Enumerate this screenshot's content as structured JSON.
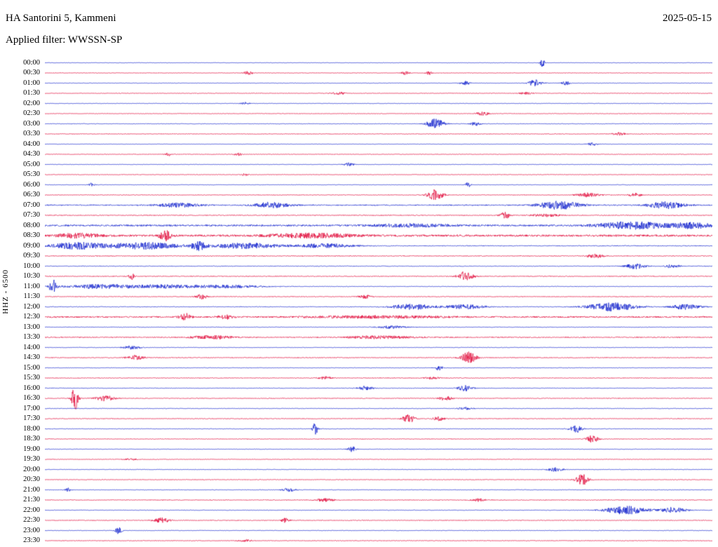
{
  "header": {
    "station_title": "HA Santorini 5, Kammeni",
    "date": "2025-05-15",
    "filter_label": "Applied filter: WWSSN-SP"
  },
  "axis": {
    "channel_label": "HHZ - 6500"
  },
  "chart_data": {
    "type": "line",
    "title": "HA Santorini 5, Kammeni",
    "subtitle": "Applied filter: WWSSN-SP",
    "date": "2025-05-15",
    "row_minutes": 30,
    "legend": "alternating half-hour traces, blue then red",
    "colors": {
      "blue": "#1122cc",
      "red": "#e00838"
    },
    "rows": [
      {
        "t": "00:00",
        "c": "b",
        "n": 0.55,
        "b": [
          [
            0.745,
            6,
            0.0035
          ]
        ]
      },
      {
        "t": "00:30",
        "c": "r",
        "n": 0.7,
        "b": [
          [
            0.305,
            2.5,
            0.007
          ],
          [
            0.54,
            2.5,
            0.006
          ],
          [
            0.575,
            3,
            0.005
          ]
        ]
      },
      {
        "t": "01:00",
        "c": "b",
        "n": 0.7,
        "b": [
          [
            0.63,
            3,
            0.007
          ],
          [
            0.735,
            5,
            0.01
          ],
          [
            0.78,
            3,
            0.006
          ]
        ]
      },
      {
        "t": "01:30",
        "c": "r",
        "n": 0.8,
        "b": [
          [
            0.44,
            1.8,
            0.01
          ],
          [
            0.72,
            1.5,
            0.01
          ]
        ]
      },
      {
        "t": "02:00",
        "c": "b",
        "n": 0.6,
        "b": [
          [
            0.3,
            1.8,
            0.006
          ]
        ]
      },
      {
        "t": "02:30",
        "c": "r",
        "n": 0.8,
        "b": [
          [
            0.655,
            3,
            0.009
          ]
        ]
      },
      {
        "t": "03:00",
        "c": "b",
        "n": 0.8,
        "b": [
          [
            0.585,
            7,
            0.013
          ],
          [
            0.645,
            3,
            0.007
          ]
        ]
      },
      {
        "t": "03:30",
        "c": "r",
        "n": 0.9,
        "b": [
          [
            0.86,
            2,
            0.01
          ]
        ]
      },
      {
        "t": "04:00",
        "c": "b",
        "n": 0.6,
        "b": [
          [
            0.82,
            2,
            0.008
          ]
        ]
      },
      {
        "t": "04:30",
        "c": "r",
        "n": 0.8,
        "b": [
          [
            0.185,
            2.5,
            0.004
          ],
          [
            0.29,
            2,
            0.006
          ]
        ]
      },
      {
        "t": "05:00",
        "c": "b",
        "n": 0.6,
        "b": [
          [
            0.455,
            2.5,
            0.008
          ]
        ]
      },
      {
        "t": "05:30",
        "c": "r",
        "n": 0.8,
        "b": [
          [
            0.3,
            1.5,
            0.006
          ]
        ]
      },
      {
        "t": "06:00",
        "c": "b",
        "n": 0.7,
        "b": [
          [
            0.07,
            2.5,
            0.005
          ],
          [
            0.634,
            4,
            0.004
          ]
        ]
      },
      {
        "t": "06:30",
        "c": "r",
        "n": 0.9,
        "b": [
          [
            0.585,
            8,
            0.011
          ],
          [
            0.815,
            3,
            0.018
          ],
          [
            0.885,
            2.5,
            0.01
          ]
        ]
      },
      {
        "t": "07:00",
        "c": "b",
        "n": 1.6,
        "b": [
          [
            0.2,
            3,
            0.03
          ],
          [
            0.34,
            4,
            0.025
          ],
          [
            0.77,
            6,
            0.03
          ],
          [
            0.93,
            5,
            0.025
          ]
        ]
      },
      {
        "t": "07:30",
        "c": "r",
        "n": 1.2,
        "b": [
          [
            0.69,
            5,
            0.007
          ],
          [
            0.75,
            2,
            0.02
          ]
        ]
      },
      {
        "t": "08:00",
        "c": "b",
        "n": 2.5,
        "b": [
          [
            0.55,
            2,
            0.06
          ],
          [
            0.88,
            5,
            0.05
          ],
          [
            0.97,
            4,
            0.03
          ]
        ]
      },
      {
        "t": "08:30",
        "c": "r",
        "n": 3.0,
        "b": [
          [
            0.05,
            3,
            0.03
          ],
          [
            0.18,
            8,
            0.008
          ],
          [
            0.4,
            3,
            0.06
          ]
        ]
      },
      {
        "t": "09:00",
        "c": "b",
        "n": 1.2,
        "b": [
          [
            0.05,
            5,
            0.04
          ],
          [
            0.15,
            5,
            0.05
          ],
          [
            0.23,
            6,
            0.01
          ],
          [
            0.3,
            4,
            0.05
          ],
          [
            0.42,
            3,
            0.04
          ]
        ]
      },
      {
        "t": "09:30",
        "c": "r",
        "n": 1.2,
        "b": [
          [
            0.825,
            3,
            0.012
          ]
        ]
      },
      {
        "t": "10:00",
        "c": "b",
        "n": 1.0,
        "b": [
          [
            0.885,
            4,
            0.014
          ],
          [
            0.94,
            3,
            0.01
          ]
        ]
      },
      {
        "t": "10:30",
        "c": "r",
        "n": 1.1,
        "b": [
          [
            0.13,
            5,
            0.004
          ],
          [
            0.63,
            7,
            0.011
          ]
        ]
      },
      {
        "t": "11:00",
        "c": "b",
        "n": 0.8,
        "b": [
          [
            0.012,
            10,
            0.005
          ],
          [
            0.08,
            3,
            0.05
          ],
          [
            0.18,
            2.5,
            0.06
          ],
          [
            0.28,
            2,
            0.05
          ]
        ]
      },
      {
        "t": "11:30",
        "c": "r",
        "n": 1.0,
        "b": [
          [
            0.235,
            3.5,
            0.008
          ],
          [
            0.48,
            2.5,
            0.01
          ]
        ]
      },
      {
        "t": "12:00",
        "c": "b",
        "n": 1.0,
        "b": [
          [
            0.55,
            4,
            0.03
          ],
          [
            0.63,
            3,
            0.03
          ],
          [
            0.85,
            6,
            0.035
          ],
          [
            0.96,
            4,
            0.02
          ]
        ]
      },
      {
        "t": "12:30",
        "c": "r",
        "n": 2.2,
        "b": [
          [
            0.21,
            5,
            0.008
          ],
          [
            0.27,
            3,
            0.01
          ],
          [
            0.5,
            1.5,
            0.1
          ]
        ]
      },
      {
        "t": "13:00",
        "c": "b",
        "n": 0.9,
        "b": [
          [
            0.52,
            2,
            0.02
          ]
        ]
      },
      {
        "t": "13:30",
        "c": "r",
        "n": 1.4,
        "b": [
          [
            0.25,
            2.5,
            0.03
          ],
          [
            0.5,
            2,
            0.05
          ]
        ]
      },
      {
        "t": "14:00",
        "c": "b",
        "n": 0.8,
        "b": [
          [
            0.13,
            2.5,
            0.013
          ]
        ]
      },
      {
        "t": "14:30",
        "c": "r",
        "n": 1.1,
        "b": [
          [
            0.135,
            3,
            0.013
          ],
          [
            0.635,
            8,
            0.011
          ]
        ]
      },
      {
        "t": "15:00",
        "c": "b",
        "n": 0.8,
        "b": [
          [
            0.59,
            3.5,
            0.006
          ]
        ]
      },
      {
        "t": "15:30",
        "c": "r",
        "n": 1.0,
        "b": [
          [
            0.42,
            2,
            0.01
          ],
          [
            0.58,
            2,
            0.01
          ]
        ]
      },
      {
        "t": "16:00",
        "c": "b",
        "n": 0.9,
        "b": [
          [
            0.48,
            3,
            0.01
          ],
          [
            0.63,
            4,
            0.011
          ]
        ]
      },
      {
        "t": "16:30",
        "c": "r",
        "n": 1.0,
        "b": [
          [
            0.045,
            16,
            0.005
          ],
          [
            0.09,
            4,
            0.014
          ],
          [
            0.6,
            3,
            0.01
          ]
        ]
      },
      {
        "t": "17:00",
        "c": "b",
        "n": 0.8,
        "b": [
          [
            0.63,
            2,
            0.01
          ]
        ]
      },
      {
        "t": "17:30",
        "c": "r",
        "n": 1.0,
        "b": [
          [
            0.545,
            6,
            0.009
          ],
          [
            0.59,
            3,
            0.008
          ]
        ]
      },
      {
        "t": "18:00",
        "c": "b",
        "n": 0.8,
        "b": [
          [
            0.405,
            9,
            0.0035
          ],
          [
            0.795,
            6,
            0.009
          ]
        ]
      },
      {
        "t": "18:30",
        "c": "r",
        "n": 0.9,
        "b": [
          [
            0.82,
            5,
            0.009
          ]
        ]
      },
      {
        "t": "19:00",
        "c": "b",
        "n": 0.7,
        "b": [
          [
            0.46,
            4,
            0.006
          ]
        ]
      },
      {
        "t": "19:30",
        "c": "r",
        "n": 0.8,
        "b": [
          [
            0.13,
            1.5,
            0.01
          ]
        ]
      },
      {
        "t": "20:00",
        "c": "b",
        "n": 0.7,
        "b": [
          [
            0.765,
            3,
            0.011
          ]
        ]
      },
      {
        "t": "20:30",
        "c": "r",
        "n": 0.9,
        "b": [
          [
            0.805,
            8,
            0.009
          ]
        ]
      },
      {
        "t": "21:00",
        "c": "b",
        "n": 0.8,
        "b": [
          [
            0.035,
            3,
            0.004
          ],
          [
            0.365,
            2.5,
            0.01
          ]
        ]
      },
      {
        "t": "21:30",
        "c": "r",
        "n": 1.0,
        "b": [
          [
            0.42,
            2,
            0.014
          ],
          [
            0.65,
            2,
            0.01
          ]
        ]
      },
      {
        "t": "22:00",
        "c": "b",
        "n": 0.8,
        "b": [
          [
            0.87,
            6,
            0.03
          ],
          [
            0.94,
            4,
            0.02
          ]
        ]
      },
      {
        "t": "22:30",
        "c": "r",
        "n": 1.0,
        "b": [
          [
            0.175,
            4,
            0.011
          ],
          [
            0.36,
            3,
            0.006
          ]
        ]
      },
      {
        "t": "23:00",
        "c": "b",
        "n": 0.7,
        "b": [
          [
            0.11,
            5,
            0.005
          ]
        ]
      },
      {
        "t": "23:30",
        "c": "r",
        "n": 0.9,
        "b": [
          [
            0.3,
            1.5,
            0.01
          ]
        ]
      }
    ]
  }
}
